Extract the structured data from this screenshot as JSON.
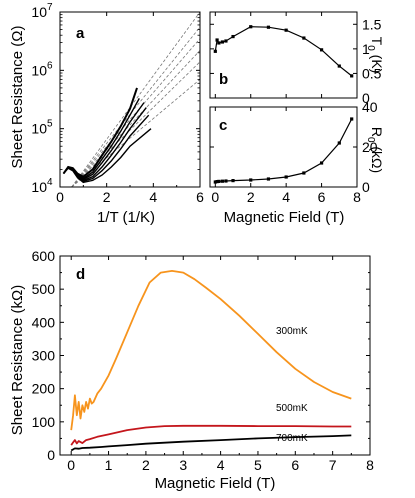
{
  "chart_data": [
    {
      "panel": "a",
      "type": "line",
      "xlabel": "1/T (1/K)",
      "ylabel": "Sheet Resistance (Ω)",
      "xlim": [
        0,
        6
      ],
      "ylim": [
        10000,
        10000000
      ],
      "yscale": "log",
      "xticks": [
        "0",
        "2",
        "4",
        "6"
      ],
      "yticks": [
        {
          "base": "10",
          "exp": "4",
          "value": 10000
        },
        {
          "base": "10",
          "exp": "5",
          "value": 100000
        },
        {
          "base": "10",
          "exp": "6",
          "value": 1000000
        },
        {
          "base": "10",
          "exp": "7",
          "value": 10000000
        }
      ],
      "series": [
        {
          "x": [
            0.15,
            0.35,
            0.55,
            0.75,
            1.0,
            1.4,
            1.8,
            2.2,
            2.6,
            3.0,
            3.3
          ],
          "y": [
            17000,
            22000,
            21000,
            17000,
            15000,
            20000,
            35000,
            60000,
            110000,
            220000,
            500000
          ]
        },
        {
          "x": [
            0.15,
            0.35,
            0.55,
            0.75,
            1.0,
            1.4,
            1.8,
            2.2,
            2.6,
            3.0,
            3.4
          ],
          "y": [
            17000,
            22000,
            21000,
            16500,
            14000,
            18000,
            30000,
            50000,
            90000,
            170000,
            330000
          ]
        },
        {
          "x": [
            0.15,
            0.35,
            0.55,
            0.75,
            1.0,
            1.4,
            1.8,
            2.2,
            2.6,
            3.0,
            3.6
          ],
          "y": [
            17000,
            22000,
            20500,
            16000,
            13500,
            16500,
            26000,
            42000,
            72000,
            130000,
            280000
          ]
        },
        {
          "x": [
            0.15,
            0.35,
            0.55,
            0.75,
            1.0,
            1.4,
            1.8,
            2.2,
            2.6,
            3.0,
            3.7
          ],
          "y": [
            17000,
            22000,
            20000,
            15500,
            13000,
            15000,
            22000,
            35000,
            58000,
            100000,
            230000
          ]
        },
        {
          "x": [
            0.15,
            0.35,
            0.55,
            0.75,
            1.0,
            1.4,
            1.8,
            2.2,
            2.6,
            3.0,
            3.8
          ],
          "y": [
            17000,
            21500,
            19500,
            15000,
            12500,
            14000,
            19000,
            28000,
            45000,
            75000,
            170000
          ]
        },
        {
          "x": [
            0.15,
            0.35,
            0.55,
            0.75,
            1.0,
            1.4,
            1.8,
            2.2,
            2.6,
            3.0,
            3.9
          ],
          "y": [
            17000,
            21000,
            19000,
            14500,
            12000,
            13000,
            16000,
            22000,
            32000,
            50000,
            100000
          ]
        }
      ],
      "fits": [
        {
          "x": [
            0.5,
            6
          ],
          "y": [
            10000,
            10000000
          ]
        },
        {
          "x": [
            0.5,
            6
          ],
          "y": [
            10000,
            5500000
          ]
        },
        {
          "x": [
            0.5,
            6
          ],
          "y": [
            10000,
            3500000
          ]
        },
        {
          "x": [
            0.5,
            6
          ],
          "y": [
            10000,
            2200000
          ]
        },
        {
          "x": [
            0.5,
            6
          ],
          "y": [
            10000,
            1400000
          ]
        },
        {
          "x": [
            0.5,
            6
          ],
          "y": [
            10000,
            700000
          ]
        }
      ],
      "panel_label": "a"
    },
    {
      "panel": "b",
      "type": "line",
      "xlabel": "",
      "ylabel_main": "T",
      "ylabel_sub": "0",
      "ylabel_unit": " (K)",
      "xlim": [
        -0.3,
        8
      ],
      "ylim": [
        0,
        1.75
      ],
      "yticks": [
        "0",
        "0.5",
        "1",
        "1.5"
      ],
      "x": [
        0,
        0.1,
        0.2,
        0.4,
        0.6,
        1.0,
        2.0,
        3.0,
        4.0,
        5.0,
        6.0,
        7.0,
        7.7
      ],
      "y": [
        0.95,
        1.18,
        1.12,
        1.14,
        1.16,
        1.25,
        1.45,
        1.44,
        1.38,
        1.22,
        0.98,
        0.65,
        0.45
      ],
      "panel_label": "b"
    },
    {
      "panel": "c",
      "type": "line",
      "xlabel": "Magnetic Field (T)",
      "ylabel_main": "R",
      "ylabel_sub": "0",
      "ylabel_unit": " (kΩ)",
      "xlim": [
        -0.3,
        8
      ],
      "ylim": [
        0,
        40
      ],
      "xticks": [
        "0",
        "2",
        "4",
        "6",
        "8"
      ],
      "yticks": [
        "0",
        "20",
        "40"
      ],
      "x": [
        0,
        0.1,
        0.2,
        0.4,
        0.6,
        1.0,
        2.0,
        3.0,
        4.0,
        5.0,
        6.0,
        7.0,
        7.7
      ],
      "y": [
        2.5,
        2.7,
        2.8,
        2.9,
        3.0,
        3.2,
        3.5,
        4.0,
        5.0,
        7.0,
        12.0,
        22.0,
        34.0
      ],
      "panel_label": "c"
    },
    {
      "panel": "d",
      "type": "line",
      "xlabel": "Magnetic Field (T)",
      "ylabel": "Sheet Resistance (kΩ)",
      "xlim": [
        -0.3,
        8
      ],
      "ylim": [
        0,
        600
      ],
      "xticks": [
        "0",
        "1",
        "2",
        "3",
        "4",
        "5",
        "6",
        "7",
        "8"
      ],
      "yticks": [
        "0",
        "100",
        "200",
        "300",
        "400",
        "500",
        "600"
      ],
      "series": [
        {
          "name": "300mK",
          "color": "#f7941d",
          "x": [
            0.0,
            0.05,
            0.1,
            0.15,
            0.2,
            0.25,
            0.3,
            0.35,
            0.4,
            0.45,
            0.5,
            0.55,
            0.6,
            0.7,
            0.8,
            1.0,
            1.2,
            1.5,
            1.8,
            2.1,
            2.4,
            2.7,
            3.0,
            3.3,
            3.6,
            4.0,
            4.5,
            5.0,
            5.5,
            6.0,
            6.5,
            7.0,
            7.5
          ],
          "y": [
            75,
            120,
            180,
            120,
            160,
            110,
            150,
            130,
            160,
            140,
            170,
            155,
            160,
            185,
            200,
            240,
            290,
            370,
            450,
            520,
            550,
            555,
            550,
            530,
            505,
            470,
            420,
            365,
            310,
            260,
            220,
            190,
            170
          ]
        },
        {
          "name": "500mK",
          "color": "#c4161c",
          "x": [
            0.0,
            0.05,
            0.1,
            0.15,
            0.2,
            0.3,
            0.4,
            0.5,
            0.7,
            1.0,
            1.5,
            2.0,
            2.5,
            3.0,
            4.0,
            5.0,
            6.0,
            7.0,
            7.5
          ],
          "y": [
            30,
            38,
            45,
            35,
            42,
            36,
            45,
            48,
            55,
            62,
            75,
            83,
            87,
            88,
            88,
            87,
            87,
            86,
            86
          ]
        },
        {
          "name": "700mK",
          "color": "#000000",
          "x": [
            0.0,
            0.05,
            0.1,
            0.2,
            0.3,
            0.5,
            0.8,
            1.0,
            1.5,
            2.0,
            3.0,
            4.0,
            5.0,
            6.0,
            7.0,
            7.5
          ],
          "y": [
            14,
            17,
            20,
            19,
            21,
            22,
            24,
            26,
            30,
            34,
            40,
            45,
            50,
            54,
            57,
            59
          ]
        }
      ],
      "panel_label": "d"
    }
  ]
}
